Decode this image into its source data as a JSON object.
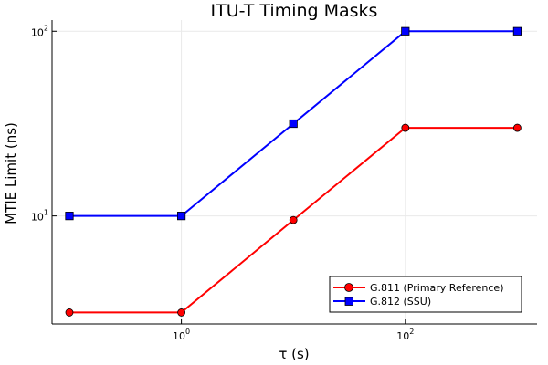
{
  "chart_data": {
    "type": "line",
    "title": "ITU-T Timing Masks",
    "xlabel": "τ (s)",
    "ylabel": "MTIE Limit (ns)",
    "xscale": "log",
    "yscale": "log",
    "xlim": [
      0.07,
      1500
    ],
    "ylim": [
      2.6,
      115
    ],
    "grid": true,
    "legend_position": "bottom-right",
    "x": [
      0.1,
      1,
      10,
      100,
      1000
    ],
    "series": [
      {
        "name": "G.811 (Primary Reference)",
        "color": "#ff0000",
        "marker": "circle",
        "values": [
          3,
          3,
          9.5,
          30,
          30
        ]
      },
      {
        "name": "G.812 (SSU)",
        "color": "#0000ff",
        "marker": "square",
        "values": [
          10,
          10,
          31.6,
          100,
          100
        ]
      }
    ],
    "xticks": [
      {
        "value": 1,
        "base": "10",
        "exp": "0"
      },
      {
        "value": 100,
        "base": "10",
        "exp": "2"
      }
    ],
    "yticks": [
      {
        "value": 10,
        "base": "10",
        "exp": "1"
      },
      {
        "value": 100,
        "base": "10",
        "exp": "2"
      }
    ]
  }
}
